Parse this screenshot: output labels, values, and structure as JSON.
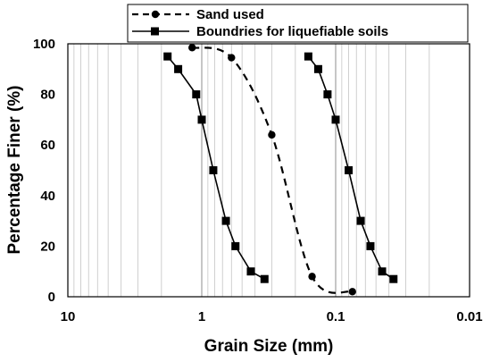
{
  "chart_data": {
    "type": "line",
    "xlabel": "Grain Size (mm)",
    "ylabel": "Percentage Finer (%)",
    "x_scale": "log",
    "x_reversed": true,
    "xlim": [
      10,
      0.01
    ],
    "ylim": [
      0,
      100
    ],
    "x_ticks": [
      10,
      1,
      0.1,
      0.01
    ],
    "x_tick_labels": [
      "10",
      "1",
      "0.1",
      "0.01"
    ],
    "y_ticks": [
      0,
      20,
      40,
      60,
      80,
      100
    ],
    "y_tick_labels": [
      "0",
      "20",
      "40",
      "60",
      "80",
      "100"
    ],
    "grid": "vertical-minor",
    "legend_position": "top",
    "series": [
      {
        "name": "Sand used",
        "style": "dashed",
        "marker": "circle",
        "color": "#000000",
        "points": [
          [
            1.18,
            98.5
          ],
          [
            0.6,
            94.5
          ],
          [
            0.3,
            64
          ],
          [
            0.15,
            8
          ],
          [
            0.075,
            2
          ]
        ]
      },
      {
        "name": "Boundries for liquefiable soils",
        "style": "solid",
        "marker": "square",
        "color": "#000000",
        "points": [
          [
            1.8,
            95
          ],
          [
            1.5,
            90
          ],
          [
            1.1,
            80
          ],
          [
            1.0,
            70
          ],
          [
            0.82,
            50
          ],
          [
            0.66,
            30
          ],
          [
            0.56,
            20
          ],
          [
            0.43,
            10
          ],
          [
            0.34,
            7
          ]
        ]
      },
      {
        "name": "",
        "style": "solid",
        "marker": "square",
        "color": "#000000",
        "points": [
          [
            0.16,
            95
          ],
          [
            0.135,
            90
          ],
          [
            0.115,
            80
          ],
          [
            0.1,
            70
          ],
          [
            0.08,
            50
          ],
          [
            0.065,
            30
          ],
          [
            0.055,
            20
          ],
          [
            0.045,
            10
          ],
          [
            0.037,
            7
          ]
        ]
      }
    ]
  }
}
